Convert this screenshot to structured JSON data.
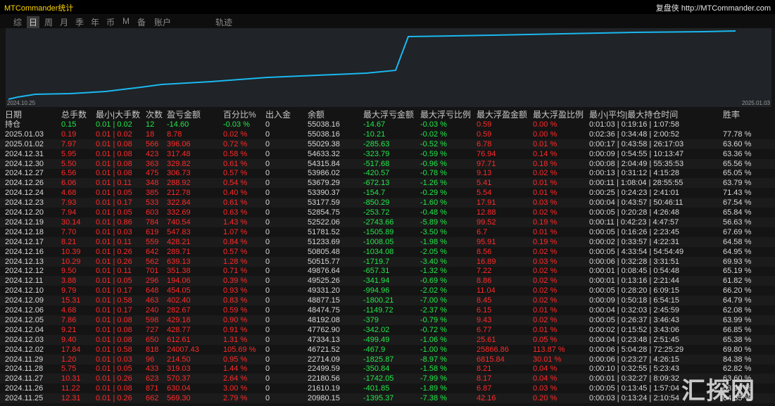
{
  "window": {
    "title": "MTCommander统计",
    "brand": "复盘侠 http://MTCommander.com"
  },
  "tabs": [
    "综",
    "日",
    "周",
    "月",
    "季",
    "年",
    "币",
    "M",
    "备",
    "账户",
    "轨迹"
  ],
  "active_tab": 1,
  "chart": {
    "start_label": "2024.10.25",
    "end_label": "2025.01.03"
  },
  "table": {
    "header": [
      "日期",
      "总手数",
      "最小|大手数",
      "次数",
      "盈亏金额",
      "百分比%",
      "出入金",
      "余额",
      "最大浮亏金额",
      "最大浮亏比例",
      "最大浮盈金额",
      "最大浮盈比例",
      "最小|平均|最大持仓时间",
      "胜率"
    ],
    "holding": [
      "持仓",
      "0.15",
      "0.01 | 0.02",
      "12",
      "-14.60",
      "-0.03 %",
      "0",
      "55038.16",
      "-14.67",
      "-0.03 %",
      "0.59",
      "0.00 %",
      "0:01:03 | 0:19:16 | 1:07:58"
    ],
    "rows": [
      [
        "2025.01.03",
        "0.19",
        "0.01 | 0.02",
        "18",
        "8.78",
        "0.02 %",
        "0",
        "55038.16",
        "-10.21",
        "-0.02 %",
        "0.59",
        "0.00 %",
        "0:02:36 | 0:34:48 | 2:00:52",
        "77.78 %"
      ],
      [
        "2025.01.02",
        "7.97",
        "0.01 | 0.08",
        "566",
        "396.06",
        "0.72 %",
        "0",
        "55029.38",
        "-285.63",
        "-0.52 %",
        "6.78",
        "0.01 %",
        "0:00:17 | 0:43:58 | 26:17:03",
        "63.60 %"
      ],
      [
        "2024.12.31",
        "5.95",
        "0.01 | 0.08",
        "423",
        "317.48",
        "0.58 %",
        "0",
        "54633.32",
        "-323.79",
        "-0.59 %",
        "76.94",
        "0.14 %",
        "0:00:09 | 0:54:55 | 10:13:47",
        "63.36 %"
      ],
      [
        "2024.12.30",
        "5.50",
        "0.01 | 0.08",
        "363",
        "329.82",
        "0.61 %",
        "0",
        "54315.84",
        "-517.68",
        "-0.96 %",
        "97.71",
        "0.18 %",
        "0:00:08 | 2:04:49 | 55:35:53",
        "65.56 %"
      ],
      [
        "2024.12.27",
        "6.56",
        "0.01 | 0.08",
        "475",
        "306.73",
        "0.57 %",
        "0",
        "53986.02",
        "-420.57",
        "-0.78 %",
        "9.13",
        "0.02 %",
        "0:00:13 | 0:31:12 | 4:15:28",
        "65.05 %"
      ],
      [
        "2024.12.26",
        "6.06",
        "0.01 | 0.11",
        "348",
        "288.92",
        "0.54 %",
        "0",
        "53679.29",
        "-672.13",
        "-1.26 %",
        "5.41",
        "0.01 %",
        "0:00:11 | 1:08:04 | 28:55:55",
        "63.79 %"
      ],
      [
        "2024.12.24",
        "4.68",
        "0.01 | 0.05",
        "385",
        "212.78",
        "0.40 %",
        "0",
        "53390.37",
        "-154.7",
        "-0.29 %",
        "5.54",
        "0.01 %",
        "0:00:25 | 0:24:23 | 2:41:01",
        "71.43 %"
      ],
      [
        "2024.12.23",
        "7.93",
        "0.01 | 0.17",
        "533",
        "322.84",
        "0.61 %",
        "0",
        "53177.59",
        "-850.29",
        "-1.60 %",
        "17.91",
        "0.03 %",
        "0:00:04 | 0:43:57 | 50:46:11",
        "67.54 %"
      ],
      [
        "2024.12.20",
        "7.94",
        "0.01 | 0.05",
        "603",
        "332.69",
        "0.63 %",
        "0",
        "52854.75",
        "-253.72",
        "-0.48 %",
        "12.88",
        "0.02 %",
        "0:00:05 | 0:20:28 | 4:26:48",
        "65.84 %"
      ],
      [
        "2024.12.19",
        "30.14",
        "0.01 | 0.86",
        "784",
        "740.54",
        "1.43 %",
        "0",
        "52522.06",
        "-2743.66",
        "-5.89 %",
        "99.52",
        "0.19 %",
        "0:00:11 | 0:42:23 | 4:47:57",
        "56.63 %"
      ],
      [
        "2024.12.18",
        "7.70",
        "0.01 | 0.03",
        "619",
        "547.83",
        "1.07 %",
        "0",
        "51781.52",
        "-1505.89",
        "-3.50 %",
        "6.7",
        "0.01 %",
        "0:00:05 | 0:16:26 | 2:23:45",
        "67.69 %"
      ],
      [
        "2024.12.17",
        "8.21",
        "0.01 | 0.11",
        "559",
        "428.21",
        "0.84 %",
        "0",
        "51233.69",
        "-1008.05",
        "-1.98 %",
        "95.91",
        "0.19 %",
        "0:00:02 | 0:33:57 | 4:22:31",
        "64.58 %"
      ],
      [
        "2024.12.16",
        "10.39",
        "0.01 | 0.26",
        "642",
        "289.71",
        "0.57 %",
        "0",
        "50805.48",
        "-1034.08",
        "-2.05 %",
        "8.56",
        "0.02 %",
        "0:00:05 | 4:33:54 | 54:54:49",
        "64.95 %"
      ],
      [
        "2024.12.13",
        "10.29",
        "0.01 | 0.26",
        "562",
        "639.13",
        "1.28 %",
        "0",
        "50515.77",
        "-1719.7",
        "-3.40 %",
        "16.89",
        "0.03 %",
        "0:00:06 | 0:32:28 | 3:31:51",
        "69.93 %"
      ],
      [
        "2024.12.12",
        "9.50",
        "0.01 | 0.11",
        "701",
        "351.38",
        "0.71 %",
        "0",
        "49876.64",
        "-657.31",
        "-1.32 %",
        "7.22",
        "0.02 %",
        "0:00:01 | 0:08:45 | 0:54:48",
        "65.19 %"
      ],
      [
        "2024.12.11",
        "3.88",
        "0.01 | 0.05",
        "296",
        "194.06",
        "0.39 %",
        "0",
        "49525.26",
        "-341.94",
        "-0.69 %",
        "8.86",
        "0.02 %",
        "0:00:01 | 0:13:16 | 2:21:44",
        "61.82 %"
      ],
      [
        "2024.12.10",
        "9.79",
        "0.01 | 0.17",
        "648",
        "454.05",
        "0.93 %",
        "0",
        "49331.20",
        "-994.96",
        "-2.02 %",
        "11.04",
        "0.02 %",
        "0:00:05 | 0:28:20 | 6:09:15",
        "66.20 %"
      ],
      [
        "2024.12.09",
        "15.31",
        "0.01 | 0.58",
        "463",
        "402.40",
        "0.83 %",
        "0",
        "48877.15",
        "-1800.21",
        "-7.00 %",
        "8.45",
        "0.02 %",
        "0:00:09 | 0:50:18 | 6:54:15",
        "64.79 %"
      ],
      [
        "2024.12.06",
        "4.68",
        "0.01 | 0.17",
        "240",
        "282.67",
        "0.59 %",
        "0",
        "48474.75",
        "-1149.72",
        "-2.37 %",
        "6.15",
        "0.01 %",
        "0:00:04 | 0:32:03 | 2:45:59",
        "62.08 %"
      ],
      [
        "2024.12.05",
        "7.86",
        "0.01 | 0.08",
        "598",
        "429.18",
        "0.90 %",
        "0",
        "48192.08",
        "-379",
        "-0.79 %",
        "9.43",
        "0.02 %",
        "0:00:05 | 0:26:37 | 3:46:43",
        "63.99 %"
      ],
      [
        "2024.12.04",
        "9.21",
        "0.01 | 0.08",
        "727",
        "428.77",
        "0.91 %",
        "0",
        "47762.90",
        "-342.02",
        "-0.72 %",
        "6.77",
        "0.01 %",
        "0:00:02 | 0:15:52 | 3:43:06",
        "66.85 %"
      ],
      [
        "2024.12.03",
        "9.40",
        "0.01 | 0.08",
        "650",
        "612.61",
        "1.31 %",
        "0",
        "47334.13",
        "-499.49",
        "-1.06 %",
        "25.61",
        "0.05 %",
        "0:00:04 | 0:23:48 | 2:51:45",
        "65.38 %"
      ],
      [
        "2024.12.02",
        "17.84",
        "0.01 | 0.58",
        "818",
        "24007.43",
        "105.69 %",
        "0",
        "46721.52",
        "-467.9",
        "-1.00 %",
        "25866.86",
        "113.87 %",
        "0:00:06 | 5:04:28 | 72:25:29",
        "69.80 %"
      ],
      [
        "2024.11.29",
        "1.20",
        "0.01 | 0.03",
        "96",
        "214.50",
        "0.95 %",
        "0",
        "22714.09",
        "-1825.87",
        "-8.97 %",
        "6815.84",
        "30.01 %",
        "0:00:06 | 0:23:27 | 4:26:15",
        "84.38 %"
      ],
      [
        "2024.11.28",
        "5.75",
        "0.01 | 0.05",
        "433",
        "319.03",
        "1.44 %",
        "0",
        "22499.59",
        "-350.84",
        "-1.58 %",
        "8.21",
        "0.04 %",
        "0:00:10 | 0:32:55 | 5:23:43",
        "62.82 %"
      ],
      [
        "2024.11.27",
        "10.31",
        "0.01 | 0.26",
        "623",
        "570.37",
        "2.64 %",
        "0",
        "22180.56",
        "-1742.05",
        "-7.99 %",
        "8.17",
        "0.04 %",
        "0:00:01 | 0:32:27 | 8:09:32",
        "63.60 %"
      ],
      [
        "2024.11.26",
        "11.22",
        "0.01 | 0.08",
        "871",
        "630.04",
        "3.00 %",
        "0",
        "21610.19",
        "-401.85",
        "-1.89 %",
        "6.87",
        "0.03 %",
        "0:00:05 | 0:13:45 | 1:57:04",
        "63.90 %"
      ],
      [
        "2024.11.25",
        "12.31",
        "0.01 | 0.26",
        "662",
        "569.30",
        "2.79 %",
        "0",
        "20980.15",
        "-1395.37",
        "-7.38 %",
        "42.16",
        "0.20 %",
        "0:00:03 | 0:13:24 | 2:10:54",
        "64.65 %"
      ]
    ]
  },
  "watermark": "汇探网"
}
